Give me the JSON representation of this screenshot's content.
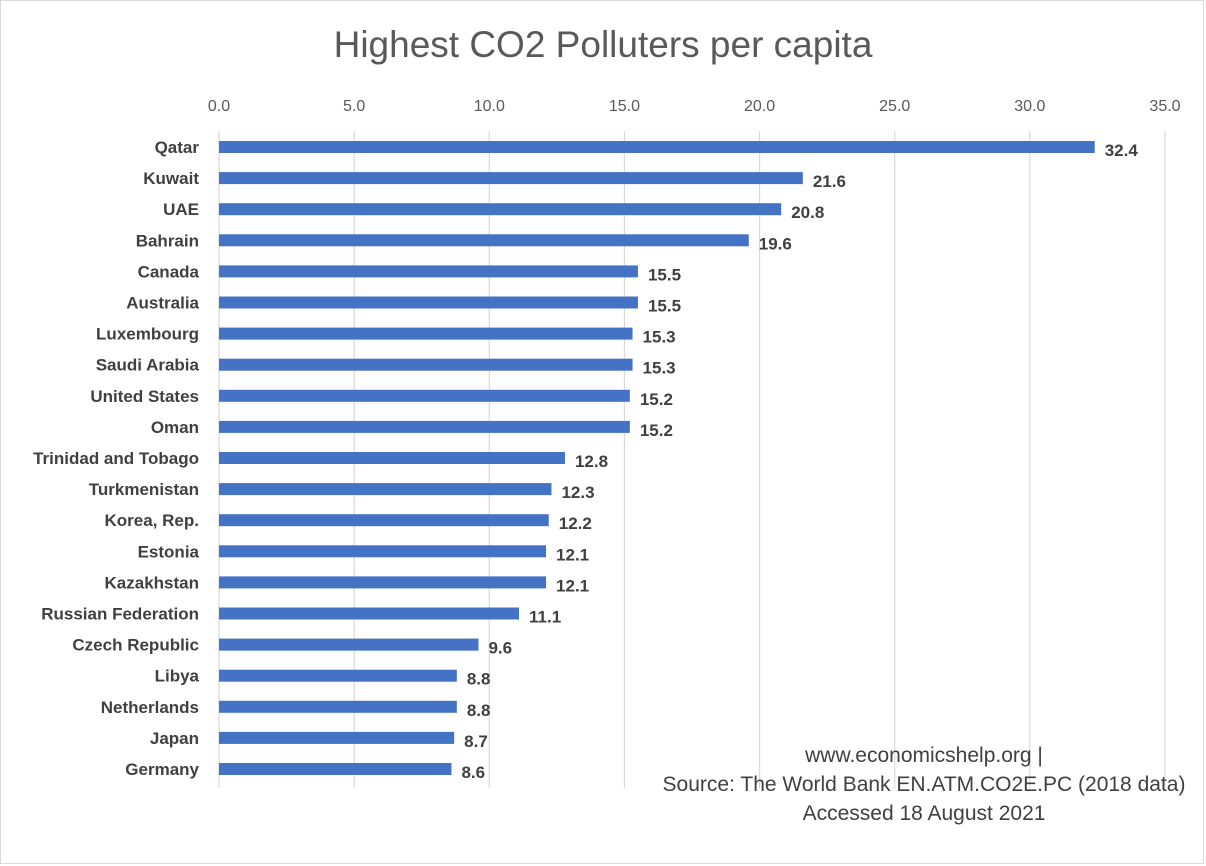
{
  "chart_data": {
    "type": "bar",
    "orientation": "horizontal",
    "title": "Highest CO2 Polluters per capita",
    "xlabel": "",
    "ylabel": "",
    "xlim": [
      0,
      35
    ],
    "x_ticks": [
      "0.0",
      "5.0",
      "10.0",
      "15.0",
      "20.0",
      "25.0",
      "30.0",
      "35.0"
    ],
    "x_axis_position": "top",
    "grid": "vertical",
    "legend": "none",
    "bar_color": "#4472C4",
    "categories": [
      "Qatar",
      "Kuwait",
      "UAE",
      "Bahrain",
      "Canada",
      "Australia",
      "Luxembourg",
      "Saudi Arabia",
      "United States",
      "Oman",
      "Trinidad and Tobago",
      "Turkmenistan",
      "Korea, Rep.",
      "Estonia",
      "Kazakhstan",
      "Russian Federation",
      "Czech Republic",
      "Libya",
      "Netherlands",
      "Japan",
      "Germany"
    ],
    "values": [
      32.4,
      21.6,
      20.8,
      19.6,
      15.5,
      15.5,
      15.3,
      15.3,
      15.2,
      15.2,
      12.8,
      12.3,
      12.2,
      12.1,
      12.1,
      11.1,
      9.6,
      8.8,
      8.8,
      8.7,
      8.6
    ],
    "value_labels": [
      "32.4",
      "21.6",
      "20.8",
      "19.6",
      "15.5",
      "15.5",
      "15.3",
      "15.3",
      "15.2",
      "15.2",
      "12.8",
      "12.3",
      "12.2",
      "12.1",
      "12.1",
      "11.1",
      "9.6",
      "8.8",
      "8.8",
      "8.7",
      "8.6"
    ]
  },
  "source_note": {
    "line1": "www.economicshelp.org |",
    "line2": "Source: The World Bank EN.ATM.CO2E.PC (2018 data)",
    "line3": "Accessed 18 August 2021"
  }
}
